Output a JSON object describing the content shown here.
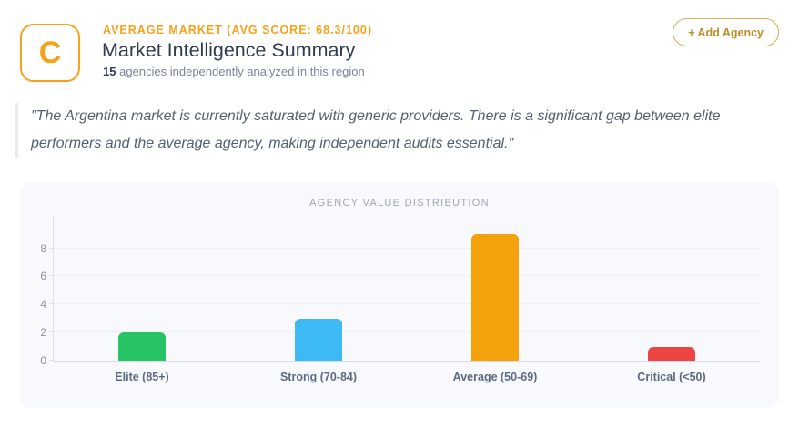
{
  "header": {
    "logo_letter": "C",
    "eyebrow": "AVERAGE MARKET (AVG SCORE: 68.3/100)",
    "title": "Market Intelligence Summary",
    "subtitle_count": "15",
    "subtitle_text": "agencies independently analyzed in this region",
    "add_agency_label": "+ Add Agency"
  },
  "quote": {
    "text": "\"The Argentina market is currently saturated with generic providers. There is a significant gap between elite performers and the average agency, making independent audits essential.\""
  },
  "chart_data": {
    "type": "bar",
    "title": "AGENCY VALUE DISTRIBUTION",
    "categories": [
      "Elite (85+)",
      "Strong (70-84)",
      "Average (50-69)",
      "Critical (<50)"
    ],
    "values": [
      2,
      3,
      9,
      1
    ],
    "bar_colors": [
      "#27c463",
      "#3db9f5",
      "#f5a10b",
      "#ee4444"
    ],
    "yticks": [
      0,
      2,
      4,
      6,
      8
    ],
    "ylim": [
      0,
      10.3
    ],
    "xlabel": "",
    "ylabel": "",
    "grid": true,
    "legend": false
  },
  "colors": {
    "accent_orange": "#f5a31c",
    "button_gold": "#b98f27",
    "panel_background": "#f8f9fc",
    "title_text": "#303c52",
    "muted_text": "#78859c"
  }
}
